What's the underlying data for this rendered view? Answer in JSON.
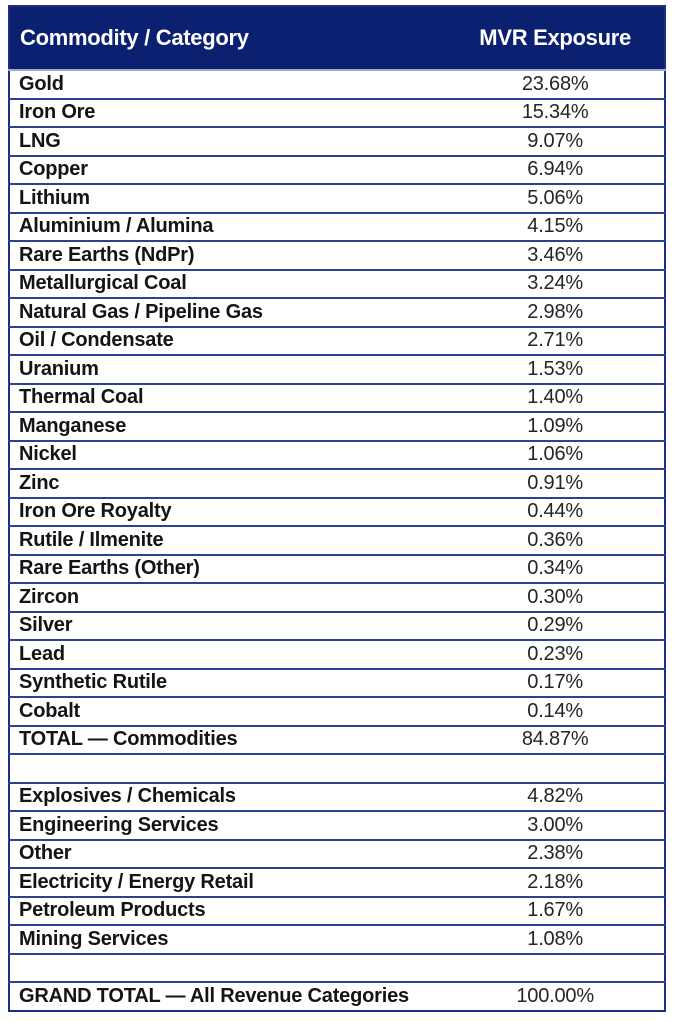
{
  "table": {
    "header": {
      "commodity_col": "Commodity / Category",
      "exposure_col": "MVR Exposure"
    },
    "rows": [
      {
        "label": "Gold",
        "value": "23.68%",
        "type": "data"
      },
      {
        "label": "Iron Ore",
        "value": "15.34%",
        "type": "data"
      },
      {
        "label": "LNG",
        "value": "9.07%",
        "type": "data"
      },
      {
        "label": "Copper",
        "value": "6.94%",
        "type": "data"
      },
      {
        "label": "Lithium",
        "value": "5.06%",
        "type": "data"
      },
      {
        "label": "Aluminium / Alumina",
        "value": "4.15%",
        "type": "data"
      },
      {
        "label": "Rare Earths (NdPr)",
        "value": "3.46%",
        "type": "data"
      },
      {
        "label": "Metallurgical Coal",
        "value": "3.24%",
        "type": "data"
      },
      {
        "label": "Natural Gas / Pipeline Gas",
        "value": "2.98%",
        "type": "data"
      },
      {
        "label": "Oil / Condensate",
        "value": "2.71%",
        "type": "data"
      },
      {
        "label": "Uranium",
        "value": "1.53%",
        "type": "data"
      },
      {
        "label": "Thermal Coal",
        "value": "1.40%",
        "type": "data"
      },
      {
        "label": "Manganese",
        "value": "1.09%",
        "type": "data"
      },
      {
        "label": "Nickel",
        "value": "1.06%",
        "type": "data"
      },
      {
        "label": "Zinc",
        "value": "0.91%",
        "type": "data"
      },
      {
        "label": "Iron Ore Royalty",
        "value": "0.44%",
        "type": "data"
      },
      {
        "label": "Rutile / Ilmenite",
        "value": "0.36%",
        "type": "data"
      },
      {
        "label": "Rare Earths (Other)",
        "value": "0.34%",
        "type": "data"
      },
      {
        "label": "Zircon",
        "value": "0.30%",
        "type": "data"
      },
      {
        "label": "Silver",
        "value": "0.29%",
        "type": "data"
      },
      {
        "label": "Lead",
        "value": "0.23%",
        "type": "data"
      },
      {
        "label": "Synthetic Rutile",
        "value": "0.17%",
        "type": "data"
      },
      {
        "label": "Cobalt",
        "value": "0.14%",
        "type": "data"
      },
      {
        "label": "TOTAL — Commodities",
        "value": "84.87%",
        "type": "total"
      },
      {
        "label": "",
        "value": "",
        "type": "spacer"
      },
      {
        "label": "Explosives / Chemicals",
        "value": "4.82%",
        "type": "data"
      },
      {
        "label": "Engineering Services",
        "value": "3.00%",
        "type": "data"
      },
      {
        "label": "Other",
        "value": "2.38%",
        "type": "data"
      },
      {
        "label": "Electricity / Energy Retail",
        "value": "2.18%",
        "type": "data"
      },
      {
        "label": "Petroleum Products",
        "value": "1.67%",
        "type": "data"
      },
      {
        "label": "Mining Services",
        "value": "1.08%",
        "type": "data"
      },
      {
        "label": "",
        "value": "",
        "type": "spacer"
      },
      {
        "label": "GRAND TOTAL — All Revenue Categories",
        "value": "100.00%",
        "type": "grand-total"
      }
    ],
    "colors": {
      "header_bg": "#0c2071",
      "header_text": "#ffffff",
      "row_divider": "#2a4390",
      "outer_border": "#1d2f7c",
      "label_text": "#141414",
      "value_text": "#252525"
    }
  },
  "chart_data": {
    "type": "table",
    "title": "",
    "columns": [
      "Commodity / Category",
      "MVR Exposure"
    ],
    "unit": "%",
    "commodities": {
      "categories": [
        "Gold",
        "Iron Ore",
        "LNG",
        "Copper",
        "Lithium",
        "Aluminium / Alumina",
        "Rare Earths (NdPr)",
        "Metallurgical Coal",
        "Natural Gas / Pipeline Gas",
        "Oil / Condensate",
        "Uranium",
        "Thermal Coal",
        "Manganese",
        "Nickel",
        "Zinc",
        "Iron Ore Royalty",
        "Rutile / Ilmenite",
        "Rare Earths (Other)",
        "Zircon",
        "Silver",
        "Lead",
        "Synthetic Rutile",
        "Cobalt"
      ],
      "values": [
        23.68,
        15.34,
        9.07,
        6.94,
        5.06,
        4.15,
        3.46,
        3.24,
        2.98,
        2.71,
        1.53,
        1.4,
        1.09,
        1.06,
        0.91,
        0.44,
        0.36,
        0.34,
        0.3,
        0.29,
        0.23,
        0.17,
        0.14
      ]
    },
    "commodities_total_label": "TOTAL — Commodities",
    "commodities_total": 84.87,
    "other_revenue_categories": {
      "categories": [
        "Explosives / Chemicals",
        "Engineering Services",
        "Other",
        "Electricity / Energy Retail",
        "Petroleum Products",
        "Mining Services"
      ],
      "values": [
        4.82,
        3.0,
        2.38,
        2.18,
        1.67,
        1.08
      ]
    },
    "grand_total_label": "GRAND TOTAL — All Revenue Categories",
    "grand_total": 100.0
  }
}
